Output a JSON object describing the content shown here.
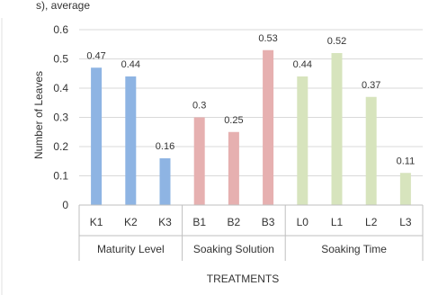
{
  "header_fragment": "s), average",
  "chart_data": {
    "type": "bar",
    "ylabel": "Number of Leaves",
    "xlabel": "TREATMENTS",
    "ylim": [
      0,
      0.6
    ],
    "yticks": [
      "0",
      "0.1",
      "0.2",
      "0.3",
      "0.4",
      "0.5",
      "0.6"
    ],
    "grid": true,
    "groups": [
      {
        "label": "Maturity Level",
        "color": "#8eb4e3",
        "categories": [
          "K1",
          "K2",
          "K3"
        ],
        "values": [
          0.47,
          0.44,
          0.16
        ],
        "data_labels": [
          "0.47",
          "0.44",
          "0.16"
        ]
      },
      {
        "label": "Soaking Solution",
        "color": "#e6b0b0",
        "categories": [
          "B1",
          "B2",
          "B3"
        ],
        "values": [
          0.3,
          0.25,
          0.53
        ],
        "data_labels": [
          "0.3",
          "0.25",
          "0.53"
        ]
      },
      {
        "label": "Soaking Time",
        "color": "#d7e4bd",
        "categories": [
          "L0",
          "L1",
          "L2",
          "L3"
        ],
        "values": [
          0.44,
          0.52,
          0.37,
          0.11
        ],
        "data_labels": [
          "0.44",
          "0.52",
          "0.37",
          "0.11"
        ]
      }
    ]
  }
}
